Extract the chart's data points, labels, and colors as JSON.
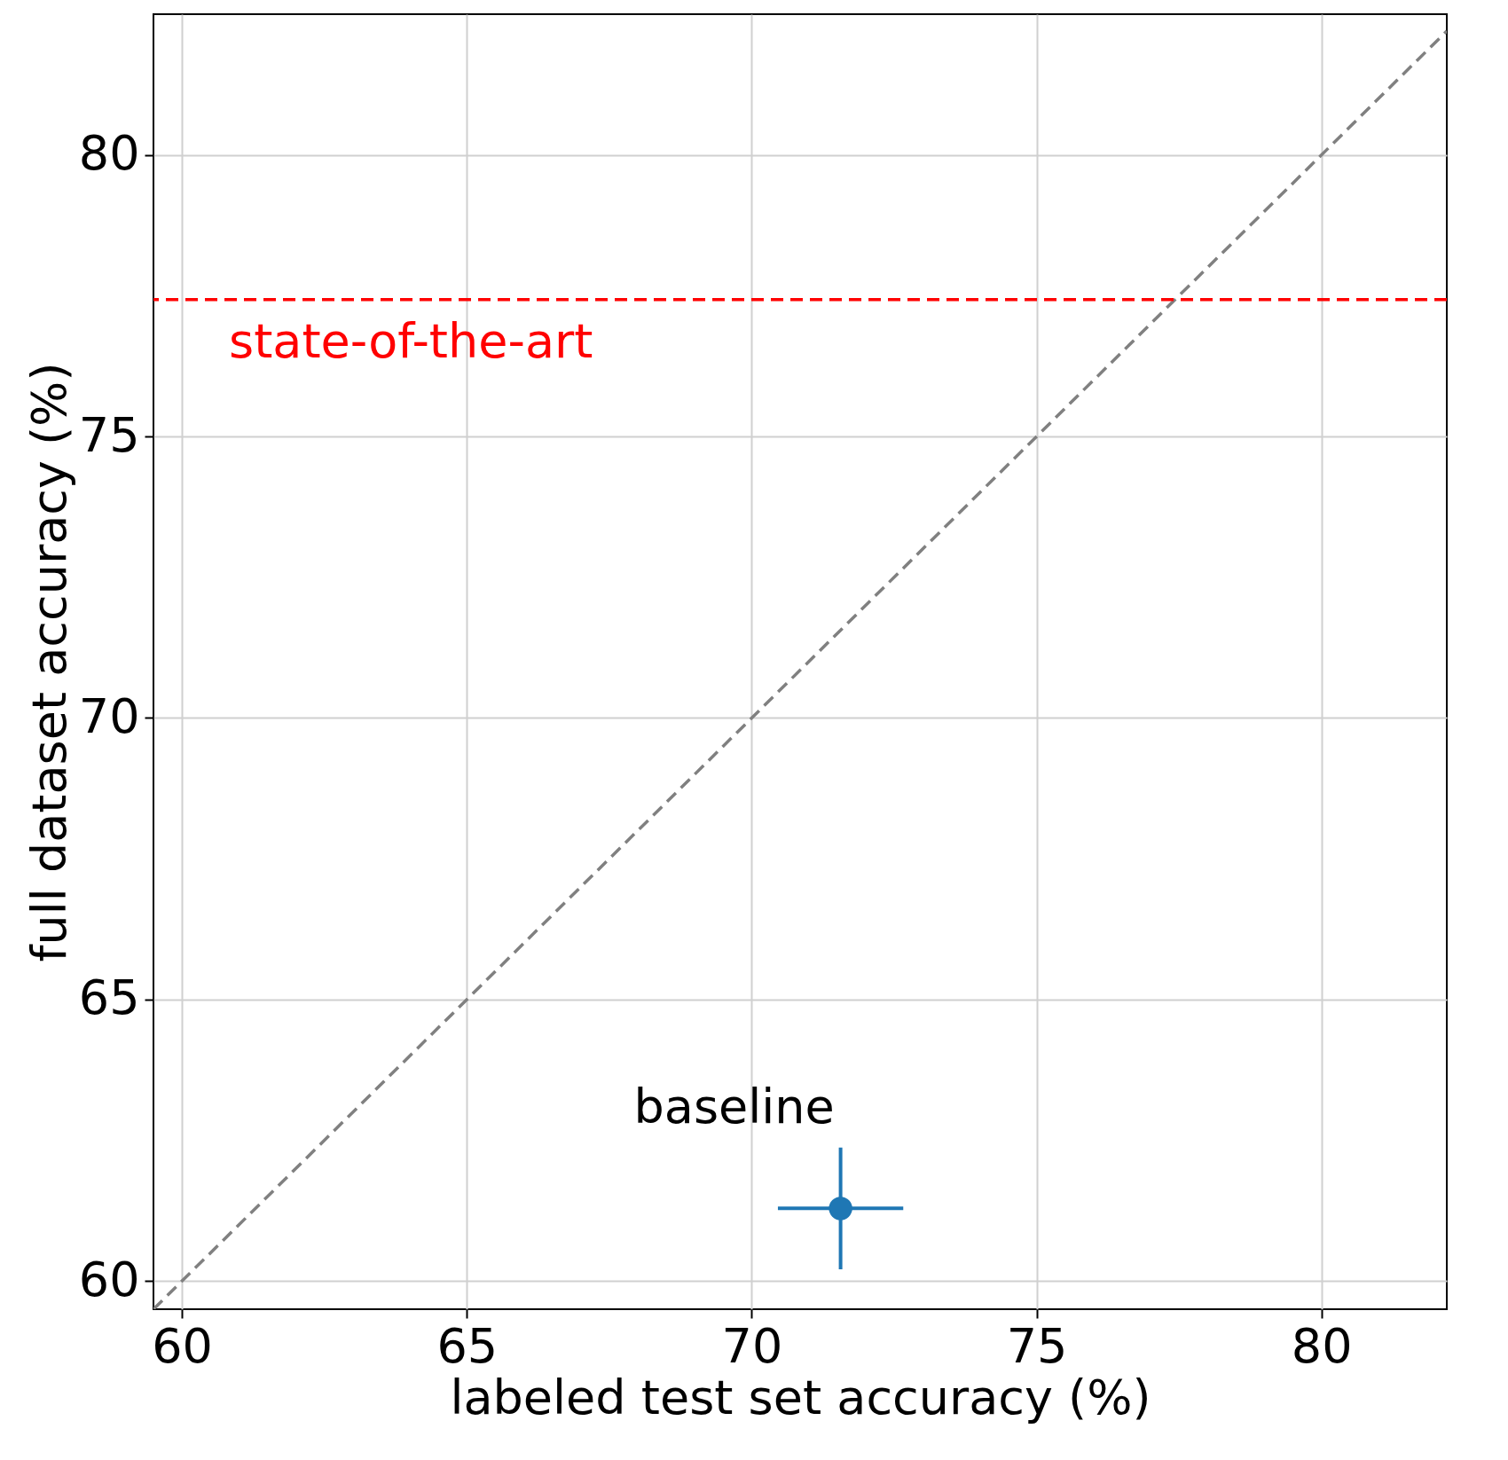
{
  "chart_data": {
    "type": "scatter",
    "xlabel": "labeled test set accuracy (%)",
    "ylabel": "full dataset accuracy (%)",
    "xlim": [
      59.5,
      82.2
    ],
    "ylim": [
      59.5,
      82.5
    ],
    "xticks": [
      60,
      65,
      70,
      75,
      80
    ],
    "yticks": [
      60,
      65,
      70,
      75,
      80
    ],
    "grid": true,
    "marker": "circle",
    "series": [
      {
        "color": "#1f77b4",
        "x": [
          71.56
        ],
        "values": [
          61.29
        ],
        "errors": [
          1.08
        ],
        "xerrors": [
          1.1
        ]
      },
      {
        "type": "line",
        "color": "#808080",
        "line_style": "dashed",
        "marker": "none",
        "x": [
          59.5,
          82.2
        ],
        "values": [
          59.5,
          82.2
        ]
      }
    ],
    "ref_lines": [
      {
        "axis": "y",
        "value": 77.43,
        "label": "state-of-the-art",
        "color": "#ff0000",
        "line_style": "dashed"
      }
    ],
    "annotations": [
      {
        "text": "baseline",
        "x": 71.56,
        "y": 61.29
      }
    ]
  }
}
